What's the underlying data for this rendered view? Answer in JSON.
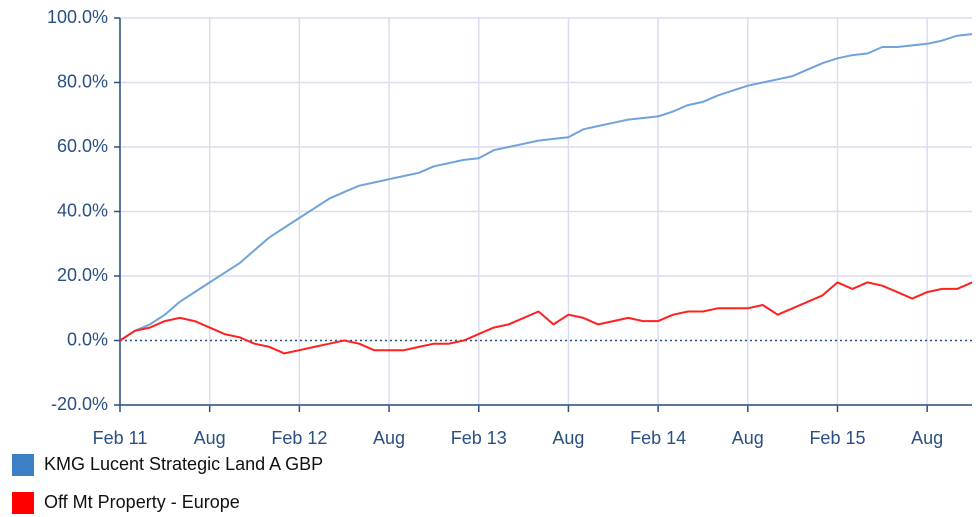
{
  "chart_data": {
    "type": "line",
    "x": [
      "2011-02",
      "2011-03",
      "2011-04",
      "2011-05",
      "2011-06",
      "2011-07",
      "2011-08",
      "2011-09",
      "2011-10",
      "2011-11",
      "2011-12",
      "2012-01",
      "2012-02",
      "2012-03",
      "2012-04",
      "2012-05",
      "2012-06",
      "2012-07",
      "2012-08",
      "2012-09",
      "2012-10",
      "2012-11",
      "2012-12",
      "2013-01",
      "2013-02",
      "2013-03",
      "2013-04",
      "2013-05",
      "2013-06",
      "2013-07",
      "2013-08",
      "2013-09",
      "2013-10",
      "2013-11",
      "2013-12",
      "2014-01",
      "2014-02",
      "2014-03",
      "2014-04",
      "2014-05",
      "2014-06",
      "2014-07",
      "2014-08",
      "2014-09",
      "2014-10",
      "2014-11",
      "2014-12",
      "2015-01",
      "2015-02",
      "2015-03",
      "2015-04",
      "2015-05",
      "2015-06",
      "2015-07",
      "2015-08",
      "2015-09",
      "2015-10",
      "2015-11"
    ],
    "series": [
      {
        "name": "KMG Lucent Strategic Land A GBP",
        "color": "#3b7fc4",
        "line_color": "#6fa3d9",
        "values": [
          0,
          3,
          5,
          8,
          12,
          15,
          18,
          21,
          24,
          28,
          32,
          35,
          38,
          41,
          44,
          46,
          48,
          49,
          50,
          51,
          52,
          54,
          55,
          56,
          56.5,
          59,
          60,
          61,
          62,
          62.5,
          63,
          65.5,
          66.5,
          67.5,
          68.5,
          69,
          69.5,
          71,
          73,
          74,
          76,
          77.5,
          79,
          80,
          81,
          82,
          84,
          86,
          87.5,
          88.5,
          89,
          91,
          91,
          91.5,
          92,
          93,
          94.5,
          95
        ]
      },
      {
        "name": "Off Mt Property - Europe",
        "color": "#ff0000",
        "line_color": "#ff2020",
        "values": [
          0,
          3,
          4,
          6,
          7,
          6,
          4,
          2,
          1,
          -1,
          -2,
          -4,
          -3,
          -2,
          -1,
          0,
          -1,
          -3,
          -3,
          -3,
          -2,
          -1,
          -1,
          0,
          2,
          4,
          5,
          7,
          9,
          5,
          8,
          7,
          5,
          6,
          7,
          6,
          6,
          8,
          9,
          9,
          10,
          10,
          10,
          11,
          8,
          10,
          12,
          14,
          18,
          16,
          18,
          17,
          15,
          13,
          15,
          16,
          16,
          18
        ]
      }
    ],
    "xlim": [
      "2011-02",
      "2015-11"
    ],
    "xticks": [
      {
        "value": "2011-02",
        "label": "Feb 11"
      },
      {
        "value": "2011-08",
        "label": "Aug"
      },
      {
        "value": "2012-02",
        "label": "Feb 12"
      },
      {
        "value": "2012-08",
        "label": "Aug"
      },
      {
        "value": "2013-02",
        "label": "Feb 13"
      },
      {
        "value": "2013-08",
        "label": "Aug"
      },
      {
        "value": "2014-02",
        "label": "Feb 14"
      },
      {
        "value": "2014-08",
        "label": "Aug"
      },
      {
        "value": "2015-02",
        "label": "Feb 15"
      },
      {
        "value": "2015-08",
        "label": "Aug"
      }
    ],
    "ylim": [
      -20,
      100
    ],
    "yticks": [
      {
        "value": -20,
        "label": "-20.0%"
      },
      {
        "value": 0,
        "label": "0.0%"
      },
      {
        "value": 20,
        "label": "20.0%"
      },
      {
        "value": 40,
        "label": "40.0%"
      },
      {
        "value": 60,
        "label": "60.0%"
      },
      {
        "value": 80,
        "label": "80.0%"
      },
      {
        "value": 100,
        "label": "100.0%"
      }
    ],
    "grid": true
  }
}
